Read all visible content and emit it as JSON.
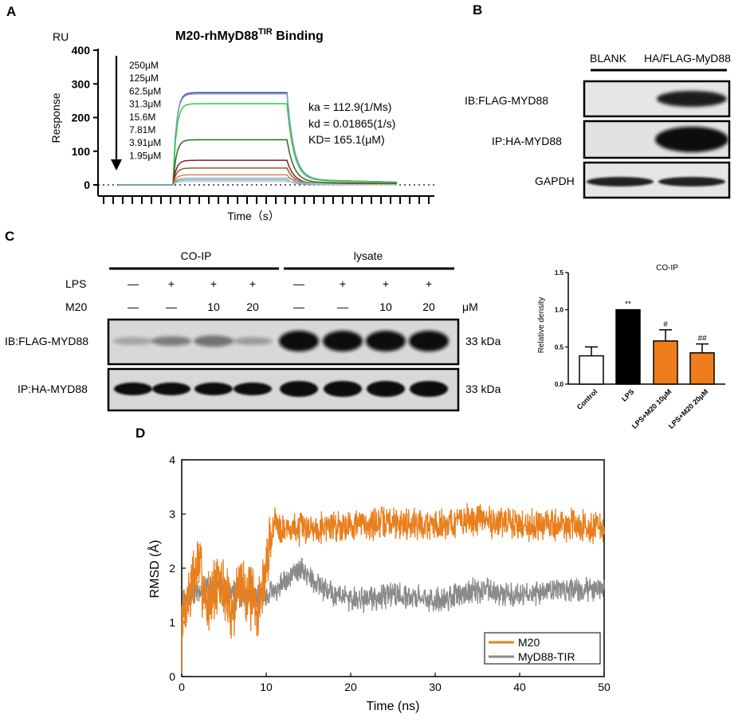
{
  "colors": {
    "orange": "#e87f1e",
    "gray": "#8a8a8a",
    "black": "#000000",
    "blot_bg": "#dcdcdc",
    "blot_band": "#1a1a1a"
  },
  "panel_a": {
    "letter": "A",
    "ru_label": "RU",
    "title_main": "M20-rhMyD88",
    "title_sup": "TIR",
    "title_tail": " Binding",
    "concentrations": [
      "250μM",
      "125μM",
      "62.5μM",
      "31.3μM",
      "15.6M",
      "7.81M",
      "3.91μM",
      "1.95μM"
    ],
    "kinetics": [
      "ka = 112.9(1/Ms)",
      "kd = 0.01865(1/s)",
      "KD= 165.1(μM)"
    ]
  },
  "panel_b": {
    "letter": "B",
    "col_labels": [
      "BLANK",
      "HA/FLAG-MyD88"
    ],
    "row_labels": [
      "IB:FLAG-MYD88",
      "IP:HA-MYD88",
      "GAPDH"
    ]
  },
  "panel_c": {
    "letter": "C",
    "groups": [
      "CO-IP",
      "lysate"
    ],
    "lps_label": "LPS",
    "m20_label": "M20",
    "lps_marks": [
      "—",
      "+",
      "+",
      "+",
      "—",
      "+",
      "+",
      "+"
    ],
    "m20_marks": [
      "—",
      "—",
      "10",
      "20",
      "—",
      "—",
      "10",
      "20"
    ],
    "unit": "μM",
    "blot_rows": [
      "IB:FLAG-MYD88",
      "IP:HA-MYD88"
    ],
    "kda": [
      "33 kDa",
      "33 kDa"
    ]
  },
  "chart_data": [
    {
      "type": "line",
      "title": "M20-rhMyD88TIR Binding",
      "xlabel": "Time（s）",
      "ylabel": "Response",
      "y_unit": "RU",
      "ylim": [
        -20,
        400
      ],
      "yticks": [
        0,
        100,
        200,
        300,
        400
      ],
      "series": [
        {
          "name": "250μM",
          "plateau": 274
        },
        {
          "name": "125μM",
          "plateau": 270
        },
        {
          "name": "62.5μM",
          "plateau": 241
        },
        {
          "name": "31.3μM",
          "plateau": 134
        },
        {
          "name": "15.6M",
          "plateau": 73
        },
        {
          "name": "7.81M",
          "plateau": 50
        },
        {
          "name": "3.91μM",
          "plateau": 30
        },
        {
          "name": "1.95μM",
          "plateau": 15
        }
      ]
    },
    {
      "type": "bar",
      "title": "CO-IP",
      "ylabel": "Relative density",
      "categories": [
        "Control",
        "LPS",
        "LPS+M20 10μM",
        "LPS+M20 20μM"
      ],
      "values": [
        0.38,
        1.0,
        0.58,
        0.42
      ],
      "errors": [
        0.12,
        0.0,
        0.15,
        0.12
      ],
      "annotations": [
        "",
        "**",
        "#",
        "##"
      ],
      "ylim": [
        0,
        1.5
      ],
      "yticks": [
        "0.0",
        "0.5",
        "1.0",
        "1.5"
      ]
    },
    {
      "type": "line",
      "panel": "D",
      "xlabel": "Time (ns)",
      "ylabel": "RMSD (Å)",
      "xlim": [
        0,
        50
      ],
      "ylim": [
        0,
        4
      ],
      "xticks": [
        "0",
        "10",
        "20",
        "30",
        "40",
        "50"
      ],
      "yticks": [
        "0",
        "1",
        "2",
        "3",
        "4"
      ],
      "series": [
        {
          "name": "M20",
          "x": [
            0,
            1,
            2,
            3,
            4,
            5,
            6,
            7,
            8,
            9,
            10,
            11,
            12,
            15,
            20,
            25,
            30,
            35,
            40,
            45,
            50
          ],
          "y": [
            1.0,
            1.6,
            2.1,
            1.3,
            1.7,
            1.6,
            1.2,
            1.8,
            1.5,
            1.2,
            2.0,
            2.9,
            2.7,
            2.75,
            2.8,
            2.85,
            2.8,
            2.9,
            2.8,
            2.8,
            2.75
          ]
        },
        {
          "name": "MyD88-TIR",
          "x": [
            0,
            2,
            4,
            6,
            8,
            10,
            12,
            14,
            16,
            20,
            25,
            30,
            35,
            40,
            45,
            50
          ],
          "y": [
            1.4,
            1.6,
            1.7,
            1.5,
            1.5,
            1.5,
            1.7,
            2.0,
            1.7,
            1.4,
            1.5,
            1.4,
            1.6,
            1.5,
            1.6,
            1.6
          ]
        }
      ]
    }
  ],
  "panel_d": {
    "letter": "D"
  }
}
